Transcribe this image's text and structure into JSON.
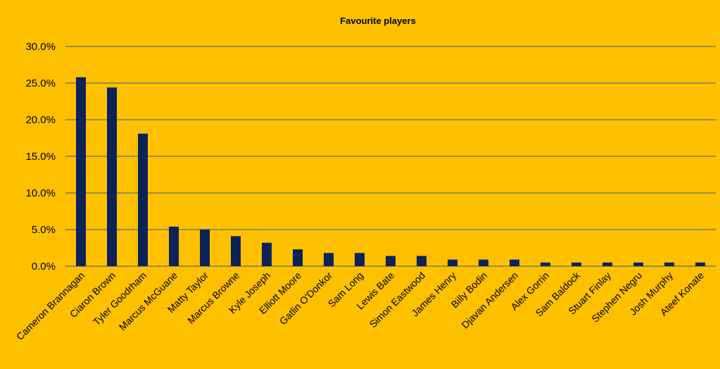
{
  "chart_data": {
    "type": "bar",
    "title": "Favourite players",
    "xlabel": "",
    "ylabel": "",
    "ylim": [
      0,
      0.3
    ],
    "yticks": [
      "0.0%",
      "5.0%",
      "10.0%",
      "15.0%",
      "20.0%",
      "25.0%",
      "30.0%"
    ],
    "grid": true,
    "legend": "none",
    "colors": {
      "background": "#ffc000",
      "bar": "#0b2359",
      "grid": "#2b5f7a"
    },
    "categories": [
      "Cameron Brannagan",
      "Ciaron Brown",
      "Tyler Goodrham",
      "Marcus McGuane",
      "Matty Taylor",
      "Marcus Browne",
      "Kyle Joseph",
      "Elliott Moore",
      "Gatlin O'Donkor",
      "Sam Long",
      "Lewis Bate",
      "Simon Eastwood",
      "James Henry",
      "Billy Bodin",
      "Djavan Andersen",
      "Alex Gorrin",
      "Sam Baldock",
      "Stuart Finlay",
      "Stephen Negru",
      "Josh Murphy",
      "Ateef Konate"
    ],
    "values": [
      0.258,
      0.244,
      0.181,
      0.054,
      0.05,
      0.041,
      0.032,
      0.023,
      0.018,
      0.018,
      0.014,
      0.014,
      0.009,
      0.009,
      0.009,
      0.005,
      0.005,
      0.005,
      0.005,
      0.005,
      0.005
    ]
  }
}
